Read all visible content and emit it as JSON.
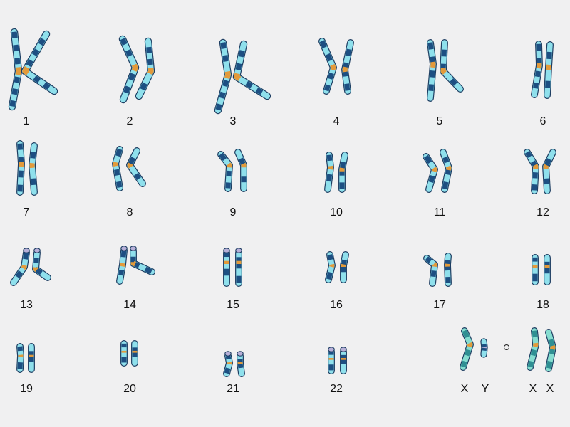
{
  "colors": {
    "background": "#f0f0f1",
    "outline": "#1e3e62",
    "light_band": "#8fe0ec",
    "dark_band": "#1d4f82",
    "centromere": "#e39a3a",
    "satellite": "#b7b0d8",
    "x_band_light": "#85ddd0",
    "x_band_dark": "#2f8f93",
    "label": "#111111"
  },
  "chromosomes": [
    {
      "label": "1"
    },
    {
      "label": "2"
    },
    {
      "label": "3"
    },
    {
      "label": "4"
    },
    {
      "label": "5"
    },
    {
      "label": "6"
    },
    {
      "label": "7"
    },
    {
      "label": "8"
    },
    {
      "label": "9"
    },
    {
      "label": "10"
    },
    {
      "label": "11"
    },
    {
      "label": "12"
    },
    {
      "label": "13"
    },
    {
      "label": "14"
    },
    {
      "label": "15"
    },
    {
      "label": "16"
    },
    {
      "label": "17"
    },
    {
      "label": "18"
    },
    {
      "label": "19"
    },
    {
      "label": "20"
    },
    {
      "label": "21"
    },
    {
      "label": "22"
    }
  ],
  "sex_chromosomes": {
    "male_labels": [
      "X",
      "Y"
    ],
    "female_labels": [
      "X",
      "X"
    ]
  }
}
